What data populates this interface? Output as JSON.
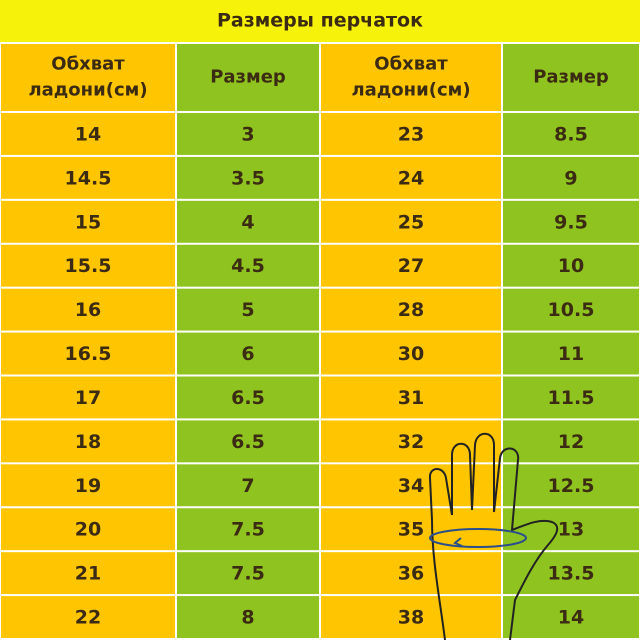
{
  "header": {
    "title": "Размеры перчаток"
  },
  "table": {
    "headers": [
      [
        "Обхват",
        "ладони(см)"
      ],
      [
        "Размер"
      ],
      [
        "Обхват",
        "ладони(см)"
      ],
      [
        "Размер"
      ]
    ],
    "rows": [
      [
        "14",
        "3",
        "23",
        "8.5"
      ],
      [
        "14.5",
        "3.5",
        "24",
        "9"
      ],
      [
        "15",
        "4",
        "25",
        "9.5"
      ],
      [
        "15.5",
        "4.5",
        "27",
        "10"
      ],
      [
        "16",
        "5",
        "28",
        "10.5"
      ],
      [
        "16.5",
        "6",
        "30",
        "11"
      ],
      [
        "17",
        "6.5",
        "31",
        "11.5"
      ],
      [
        "18",
        "6.5",
        "32",
        "12"
      ],
      [
        "19",
        "7",
        "34",
        "12.5"
      ],
      [
        "20",
        "7.5",
        "35",
        "13"
      ],
      [
        "21",
        "7.5",
        "36",
        "13.5"
      ],
      [
        "22",
        "8",
        "38",
        "14"
      ]
    ]
  }
}
